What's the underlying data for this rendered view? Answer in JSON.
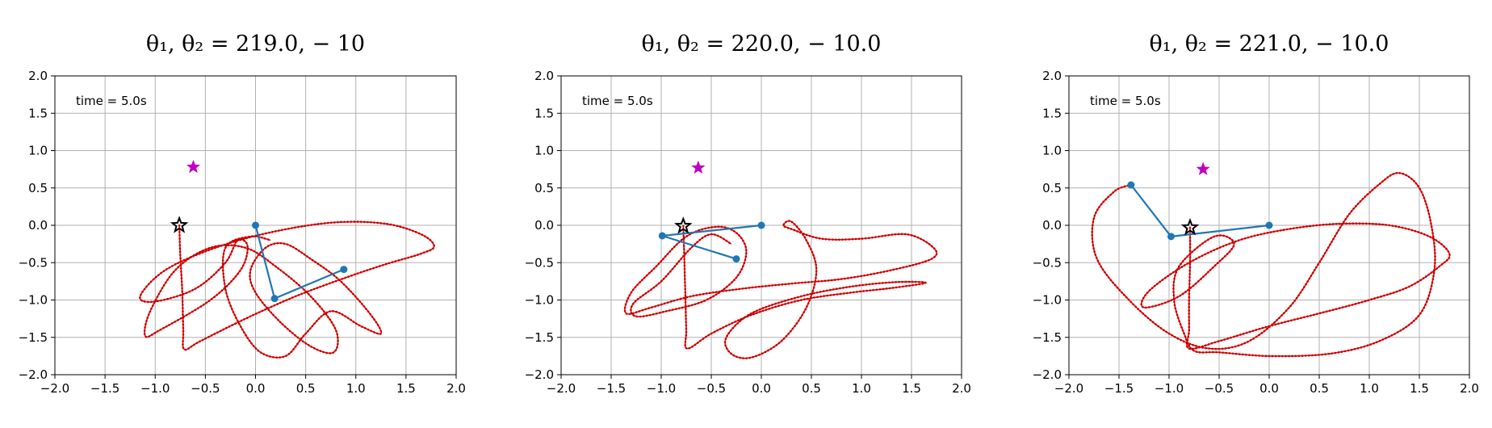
{
  "chart_data": [
    {
      "type": "line",
      "title": "θ₁, θ₂ = 219.0, − 10",
      "annotation": "time = 5.0s",
      "xlim": [
        -2.0,
        2.0
      ],
      "ylim": [
        -2.0,
        2.0
      ],
      "xticks": [
        "−2.0",
        "−1.5",
        "−1.0",
        "−0.5",
        "0.0",
        "0.5",
        "1.0",
        "1.5",
        "2.0"
      ],
      "yticks": [
        "−2.0",
        "−1.5",
        "−1.0",
        "−0.5",
        "0.0",
        "0.5",
        "1.0",
        "1.5",
        "2.0"
      ],
      "grid": true,
      "target_star": [
        -0.62,
        0.78
      ],
      "end_star": [
        -0.76,
        0.0
      ],
      "pendulum": [
        [
          0.0,
          0.0
        ],
        [
          0.19,
          -0.98
        ],
        [
          0.88,
          -0.59
        ]
      ],
      "trajectory": [
        [
          -0.76,
          0.0
        ],
        [
          -0.75,
          -0.4
        ],
        [
          -0.73,
          -0.9
        ],
        [
          -0.72,
          -1.4
        ],
        [
          -0.71,
          -1.66
        ],
        [
          -0.55,
          -1.55
        ],
        [
          -0.1,
          -1.25
        ],
        [
          0.4,
          -0.95
        ],
        [
          0.9,
          -0.7
        ],
        [
          1.3,
          -0.52
        ],
        [
          1.65,
          -0.38
        ],
        [
          1.78,
          -0.28
        ],
        [
          1.65,
          -0.12
        ],
        [
          1.3,
          0.02
        ],
        [
          0.8,
          0.04
        ],
        [
          0.2,
          -0.08
        ],
        [
          -0.4,
          -0.3
        ],
        [
          -0.9,
          -0.6
        ],
        [
          -1.15,
          -0.95
        ],
        [
          -1.0,
          -1.02
        ],
        [
          -0.6,
          -0.85
        ],
        [
          -0.3,
          -0.5
        ],
        [
          -0.18,
          -0.2
        ],
        [
          -0.08,
          -0.28
        ],
        [
          -0.15,
          -0.6
        ],
        [
          -0.45,
          -1.0
        ],
        [
          -0.95,
          -1.4
        ],
        [
          -1.1,
          -1.48
        ],
        [
          -1.05,
          -1.15
        ],
        [
          -0.8,
          -0.6
        ],
        [
          -0.45,
          -0.3
        ],
        [
          -0.1,
          -0.3
        ],
        [
          0.2,
          -0.55
        ],
        [
          0.55,
          -0.95
        ],
        [
          0.8,
          -1.4
        ],
        [
          0.78,
          -1.7
        ],
        [
          0.55,
          -1.62
        ],
        [
          0.25,
          -1.3
        ],
        [
          0.0,
          -0.9
        ],
        [
          -0.05,
          -0.6
        ],
        [
          0.1,
          -0.3
        ],
        [
          0.3,
          -0.25
        ],
        [
          0.55,
          -0.45
        ],
        [
          0.85,
          -0.75
        ],
        [
          1.15,
          -1.2
        ],
        [
          1.25,
          -1.45
        ],
        [
          1.05,
          -1.35
        ],
        [
          0.75,
          -1.15
        ],
        [
          0.5,
          -1.45
        ],
        [
          0.3,
          -1.75
        ],
        [
          0.05,
          -1.7
        ],
        [
          -0.15,
          -1.35
        ],
        [
          -0.3,
          -0.85
        ],
        [
          -0.3,
          -0.3
        ],
        [
          -0.05,
          -0.15
        ],
        [
          0.15,
          -0.2
        ]
      ]
    },
    {
      "type": "line",
      "title": "θ₁, θ₂ = 220.0, − 10.0",
      "annotation": "time = 5.0s",
      "xlim": [
        -2.0,
        2.0
      ],
      "ylim": [
        -2.0,
        2.0
      ],
      "xticks": [
        "−2.0",
        "−1.5",
        "−1.0",
        "−0.5",
        "0.0",
        "0.5",
        "1.0",
        "1.5",
        "2.0"
      ],
      "yticks": [
        "−2.0",
        "−1.5",
        "−1.0",
        "−0.5",
        "0.0",
        "0.5",
        "1.0",
        "1.5",
        "2.0"
      ],
      "grid": true,
      "target_star": [
        -0.63,
        0.77
      ],
      "end_star": [
        -0.78,
        -0.01
      ],
      "pendulum": [
        [
          0.0,
          0.0
        ],
        [
          -0.99,
          -0.14
        ],
        [
          -0.25,
          -0.45
        ]
      ],
      "trajectory": [
        [
          -0.78,
          -0.01
        ],
        [
          -0.77,
          -0.4
        ],
        [
          -0.76,
          -0.9
        ],
        [
          -0.75,
          -1.4
        ],
        [
          -0.74,
          -1.65
        ],
        [
          -0.5,
          -1.45
        ],
        [
          -0.1,
          -1.2
        ],
        [
          0.4,
          -1.0
        ],
        [
          0.9,
          -0.9
        ],
        [
          1.3,
          -0.84
        ],
        [
          1.64,
          -0.77
        ],
        [
          1.35,
          -0.76
        ],
        [
          0.9,
          -0.82
        ],
        [
          0.4,
          -0.95
        ],
        [
          -0.1,
          -1.18
        ],
        [
          -0.35,
          -1.5
        ],
        [
          -0.3,
          -1.72
        ],
        [
          -0.1,
          -1.77
        ],
        [
          0.2,
          -1.55
        ],
        [
          0.45,
          -1.1
        ],
        [
          0.55,
          -0.6
        ],
        [
          0.45,
          -0.2
        ],
        [
          0.3,
          0.05
        ],
        [
          0.22,
          0.0
        ],
        [
          0.3,
          -0.05
        ],
        [
          0.6,
          -0.18
        ],
        [
          1.0,
          -0.18
        ],
        [
          1.45,
          -0.12
        ],
        [
          1.72,
          -0.3
        ],
        [
          1.7,
          -0.45
        ],
        [
          1.3,
          -0.6
        ],
        [
          0.8,
          -0.72
        ],
        [
          0.3,
          -0.78
        ],
        [
          -0.2,
          -0.85
        ],
        [
          -0.7,
          -0.95
        ],
        [
          -1.1,
          -1.1
        ],
        [
          -1.35,
          -1.18
        ],
        [
          -1.3,
          -0.9
        ],
        [
          -1.05,
          -0.55
        ],
        [
          -0.75,
          -0.15
        ],
        [
          -0.45,
          -0.02
        ],
        [
          -0.25,
          -0.1
        ],
        [
          -0.15,
          -0.35
        ],
        [
          -0.25,
          -0.7
        ],
        [
          -0.55,
          -1.0
        ],
        [
          -0.95,
          -1.15
        ],
        [
          -1.25,
          -1.22
        ],
        [
          -1.28,
          -1.05
        ],
        [
          -1.0,
          -0.75
        ],
        [
          -0.7,
          -0.3
        ],
        [
          -0.5,
          -0.12
        ],
        [
          -0.3,
          -0.25
        ]
      ]
    },
    {
      "type": "line",
      "title": "θ₁, θ₂ = 221.0, − 10.0",
      "annotation": "time = 5.0s",
      "xlim": [
        -2.0,
        2.0
      ],
      "ylim": [
        -2.0,
        2.0
      ],
      "xticks": [
        "−2.0",
        "−1.5",
        "−1.0",
        "−0.5",
        "0.0",
        "0.5",
        "1.0",
        "1.5",
        "2.0"
      ],
      "yticks": [
        "−2.0",
        "−1.5",
        "−1.0",
        "−0.5",
        "0.0",
        "0.5",
        "1.0",
        "1.5",
        "2.0"
      ],
      "grid": true,
      "target_star": [
        -0.66,
        0.75
      ],
      "end_star": [
        -0.79,
        -0.03
      ],
      "pendulum": [
        [
          0.0,
          0.0
        ],
        [
          -0.98,
          -0.15
        ],
        [
          -1.38,
          0.54
        ]
      ],
      "trajectory": [
        [
          -0.79,
          -0.03
        ],
        [
          -0.79,
          -0.5
        ],
        [
          -0.8,
          -1.0
        ],
        [
          -0.8,
          -1.4
        ],
        [
          -0.8,
          -1.65
        ],
        [
          -0.5,
          -1.55
        ],
        [
          0.0,
          -1.35
        ],
        [
          0.5,
          -1.18
        ],
        [
          1.0,
          -1.0
        ],
        [
          1.4,
          -0.82
        ],
        [
          1.7,
          -0.55
        ],
        [
          1.8,
          -0.38
        ],
        [
          1.6,
          -0.15
        ],
        [
          1.2,
          0.0
        ],
        [
          0.7,
          0.02
        ],
        [
          0.2,
          -0.05
        ],
        [
          -0.3,
          -0.2
        ],
        [
          -0.8,
          -0.5
        ],
        [
          -1.2,
          -0.88
        ],
        [
          -1.25,
          -1.1
        ],
        [
          -0.9,
          -0.95
        ],
        [
          -0.55,
          -0.55
        ],
        [
          -0.35,
          -0.25
        ],
        [
          -0.55,
          -0.15
        ],
        [
          -0.9,
          -0.55
        ],
        [
          -0.95,
          -1.0
        ],
        [
          -0.85,
          -1.45
        ],
        [
          -0.75,
          -1.68
        ],
        [
          -0.5,
          -1.7
        ],
        [
          0.0,
          -1.75
        ],
        [
          0.6,
          -1.72
        ],
        [
          1.1,
          -1.55
        ],
        [
          1.5,
          -1.2
        ],
        [
          1.65,
          -0.6
        ],
        [
          1.62,
          0.0
        ],
        [
          1.5,
          0.5
        ],
        [
          1.3,
          0.7
        ],
        [
          1.1,
          0.55
        ],
        [
          0.8,
          0.15
        ],
        [
          0.5,
          -0.5
        ],
        [
          0.2,
          -1.1
        ],
        [
          -0.2,
          -1.55
        ],
        [
          -0.6,
          -1.65
        ],
        [
          -1.0,
          -1.45
        ],
        [
          -1.4,
          -1.0
        ],
        [
          -1.72,
          -0.45
        ],
        [
          -1.75,
          0.1
        ],
        [
          -1.55,
          0.45
        ],
        [
          -1.38,
          0.54
        ]
      ]
    }
  ]
}
